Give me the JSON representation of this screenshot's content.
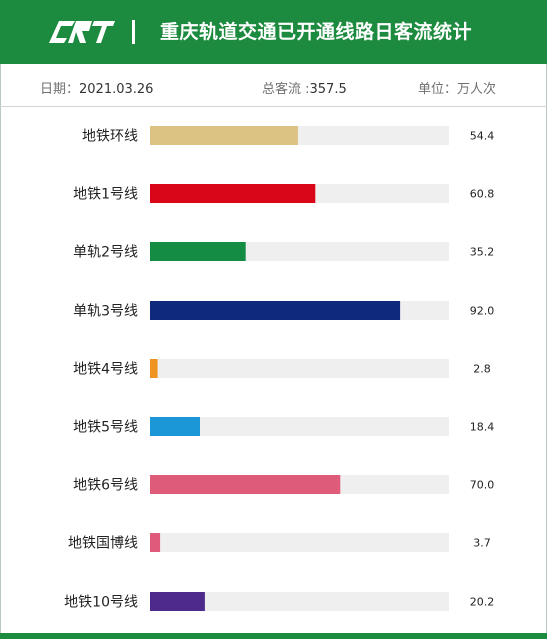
{
  "header": {
    "logo_text": "CRT",
    "title": "重庆轨道交通已开通线路日客流统计"
  },
  "info": {
    "date_label": "日期：",
    "date_value": "2021.03.26",
    "total_label": "总客流 :",
    "total_value": "357.5",
    "unit_label": "单位：",
    "unit_value": "万人次"
  },
  "colors": {
    "brand": "#1d8b3f",
    "track": "#efefef"
  },
  "chart_data": {
    "type": "bar",
    "orientation": "horizontal",
    "title": "重庆轨道交通已开通线路日客流统计",
    "unit": "万人次",
    "categories": [
      "地铁环线",
      "地铁1号线",
      "单轨2号线",
      "单轨3号线",
      "地铁4号线",
      "地铁5号线",
      "地铁6号线",
      "地铁国博线",
      "地铁10号线"
    ],
    "values": [
      54.4,
      60.8,
      35.2,
      92.0,
      2.8,
      18.4,
      70.0,
      3.7,
      20.2
    ],
    "value_labels": [
      "54.4",
      "60.8",
      "35.2",
      "92.0",
      "2.8",
      "18.4",
      "70.0",
      "3.7",
      "20.2"
    ],
    "colors": [
      "#dcc383",
      "#d9061a",
      "#158c43",
      "#0f2a7c",
      "#ef9322",
      "#1b97d8",
      "#df5b7a",
      "#e05b7b",
      "#4e2a8c"
    ],
    "xlim": [
      0,
      110
    ],
    "grid": false,
    "legend": "none"
  }
}
